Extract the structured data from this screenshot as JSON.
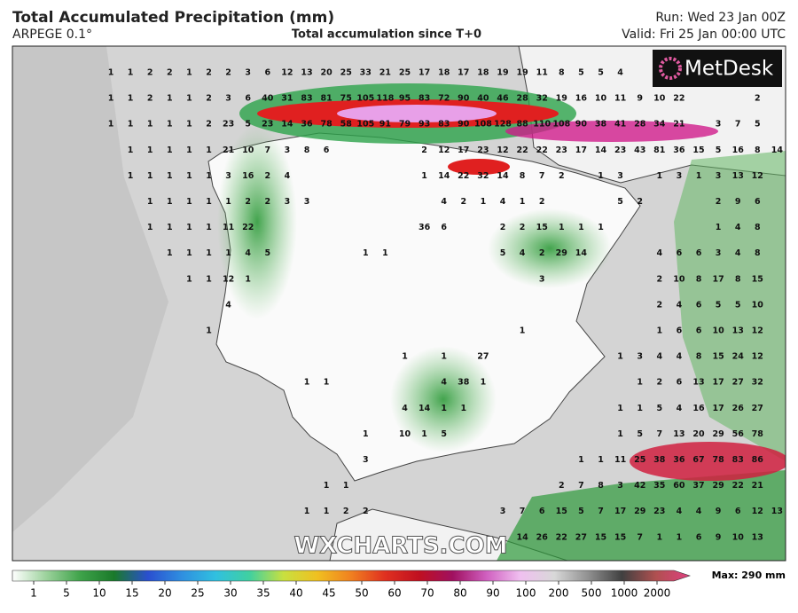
{
  "header": {
    "title": "Total Accumulated Precipitation (mm)",
    "model": "ARPEGE 0.1°",
    "subtitle": "Total accumulation since T+0",
    "run": "Run: Wed 23 Jan 00Z",
    "valid": "Valid: Fri 25 Jan 00:00 UTC"
  },
  "map": {
    "logo": "MetDesk",
    "watermark": "WXCHARTS.COM",
    "values": [
      [
        1,
        1,
        2,
        2,
        1,
        2,
        2,
        3,
        6,
        12,
        13,
        20,
        25,
        33,
        21,
        25,
        17,
        18,
        17,
        18,
        19,
        19,
        11,
        8,
        5,
        5,
        4
      ],
      [
        1,
        1,
        2,
        1,
        1,
        2,
        3,
        6,
        40,
        31,
        83,
        81,
        75,
        105,
        118,
        95,
        83,
        72,
        90,
        40,
        46,
        28,
        32,
        19,
        16,
        10,
        11,
        9,
        10,
        22,
        null,
        null,
        null,
        2
      ],
      [
        1,
        1,
        1,
        1,
        1,
        2,
        23,
        5,
        23,
        14,
        36,
        78,
        58,
        105,
        91,
        79,
        93,
        83,
        90,
        108,
        128,
        88,
        110,
        108,
        90,
        38,
        41,
        28,
        34,
        21,
        null,
        3,
        7,
        5
      ],
      [
        null,
        1,
        1,
        1,
        1,
        1,
        21,
        10,
        7,
        3,
        8,
        6,
        null,
        null,
        null,
        null,
        2,
        12,
        17,
        23,
        12,
        22,
        22,
        23,
        17,
        14,
        23,
        43,
        81,
        36,
        15,
        5,
        16,
        8,
        14
      ],
      [
        null,
        1,
        1,
        1,
        1,
        1,
        3,
        16,
        2,
        4,
        null,
        null,
        null,
        null,
        null,
        null,
        1,
        14,
        22,
        32,
        14,
        8,
        7,
        2,
        null,
        1,
        3,
        null,
        1,
        3,
        1,
        3,
        13,
        12
      ],
      [
        null,
        null,
        1,
        1,
        1,
        1,
        1,
        2,
        2,
        3,
        3,
        null,
        null,
        null,
        null,
        null,
        null,
        4,
        2,
        1,
        4,
        1,
        2,
        null,
        null,
        null,
        5,
        2,
        null,
        null,
        null,
        2,
        9,
        6
      ],
      [
        null,
        null,
        1,
        1,
        1,
        1,
        11,
        22,
        null,
        null,
        null,
        null,
        null,
        null,
        null,
        null,
        36,
        6,
        null,
        null,
        2,
        2,
        15,
        1,
        1,
        1,
        null,
        null,
        null,
        null,
        null,
        1,
        4,
        8
      ],
      [
        null,
        null,
        null,
        1,
        1,
        1,
        1,
        4,
        5,
        null,
        null,
        null,
        null,
        1,
        1,
        null,
        null,
        null,
        null,
        null,
        5,
        4,
        2,
        29,
        14,
        null,
        null,
        null,
        4,
        6,
        6,
        3,
        4,
        8
      ],
      [
        null,
        null,
        null,
        null,
        1,
        1,
        12,
        1,
        null,
        null,
        null,
        null,
        null,
        null,
        null,
        null,
        null,
        null,
        null,
        null,
        null,
        null,
        3,
        null,
        null,
        null,
        null,
        null,
        2,
        10,
        8,
        17,
        8,
        15
      ],
      [
        null,
        null,
        null,
        null,
        null,
        null,
        4,
        null,
        null,
        null,
        null,
        null,
        null,
        null,
        null,
        null,
        null,
        null,
        null,
        null,
        null,
        null,
        null,
        null,
        null,
        null,
        null,
        null,
        2,
        4,
        6,
        5,
        5,
        10
      ],
      [
        null,
        null,
        null,
        null,
        null,
        1,
        null,
        null,
        null,
        null,
        null,
        null,
        null,
        null,
        null,
        null,
        null,
        null,
        null,
        null,
        null,
        1,
        null,
        null,
        null,
        null,
        null,
        null,
        1,
        6,
        6,
        10,
        13,
        12
      ],
      [
        null,
        null,
        null,
        null,
        null,
        null,
        null,
        null,
        null,
        null,
        null,
        null,
        null,
        null,
        null,
        1,
        null,
        1,
        null,
        27,
        null,
        null,
        null,
        null,
        null,
        null,
        1,
        3,
        4,
        4,
        8,
        15,
        24,
        12
      ],
      [
        null,
        null,
        null,
        null,
        null,
        null,
        null,
        null,
        null,
        null,
        1,
        1,
        null,
        null,
        null,
        null,
        null,
        4,
        38,
        1,
        null,
        null,
        null,
        null,
        null,
        null,
        null,
        1,
        2,
        6,
        13,
        17,
        27,
        32
      ],
      [
        null,
        null,
        null,
        null,
        null,
        null,
        null,
        null,
        null,
        null,
        null,
        null,
        null,
        null,
        null,
        4,
        14,
        1,
        1,
        null,
        null,
        null,
        null,
        null,
        null,
        null,
        1,
        1,
        5,
        4,
        16,
        17,
        26,
        27
      ],
      [
        null,
        null,
        null,
        null,
        null,
        null,
        null,
        null,
        null,
        null,
        null,
        null,
        null,
        1,
        null,
        10,
        1,
        5,
        null,
        null,
        null,
        null,
        null,
        null,
        null,
        null,
        1,
        5,
        7,
        13,
        20,
        29,
        56,
        78
      ],
      [
        null,
        null,
        null,
        null,
        null,
        null,
        null,
        null,
        null,
        null,
        null,
        null,
        null,
        3,
        null,
        null,
        null,
        null,
        null,
        null,
        null,
        null,
        null,
        null,
        1,
        1,
        11,
        25,
        38,
        36,
        67,
        78,
        83,
        86
      ],
      [
        null,
        null,
        null,
        null,
        null,
        null,
        null,
        null,
        null,
        null,
        null,
        1,
        1,
        null,
        null,
        null,
        null,
        null,
        null,
        null,
        null,
        null,
        null,
        2,
        7,
        8,
        3,
        42,
        35,
        60,
        37,
        29,
        22,
        21
      ],
      [
        null,
        null,
        null,
        null,
        null,
        null,
        null,
        null,
        null,
        null,
        1,
        1,
        2,
        2,
        null,
        null,
        null,
        null,
        null,
        null,
        3,
        7,
        6,
        15,
        5,
        7,
        17,
        29,
        23,
        4,
        4,
        9,
        6,
        12,
        13
      ],
      [
        null,
        null,
        null,
        null,
        null,
        null,
        null,
        null,
        null,
        null,
        null,
        null,
        null,
        null,
        null,
        null,
        null,
        null,
        null,
        null,
        null,
        14,
        26,
        22,
        27,
        15,
        15,
        7,
        1,
        1,
        6,
        9,
        10,
        13
      ]
    ]
  },
  "legend": {
    "ticks": [
      1,
      5,
      10,
      15,
      20,
      25,
      30,
      35,
      40,
      45,
      50,
      60,
      70,
      80,
      90,
      100,
      200,
      500,
      1000,
      2000
    ],
    "max": "Max: 290 mm"
  }
}
